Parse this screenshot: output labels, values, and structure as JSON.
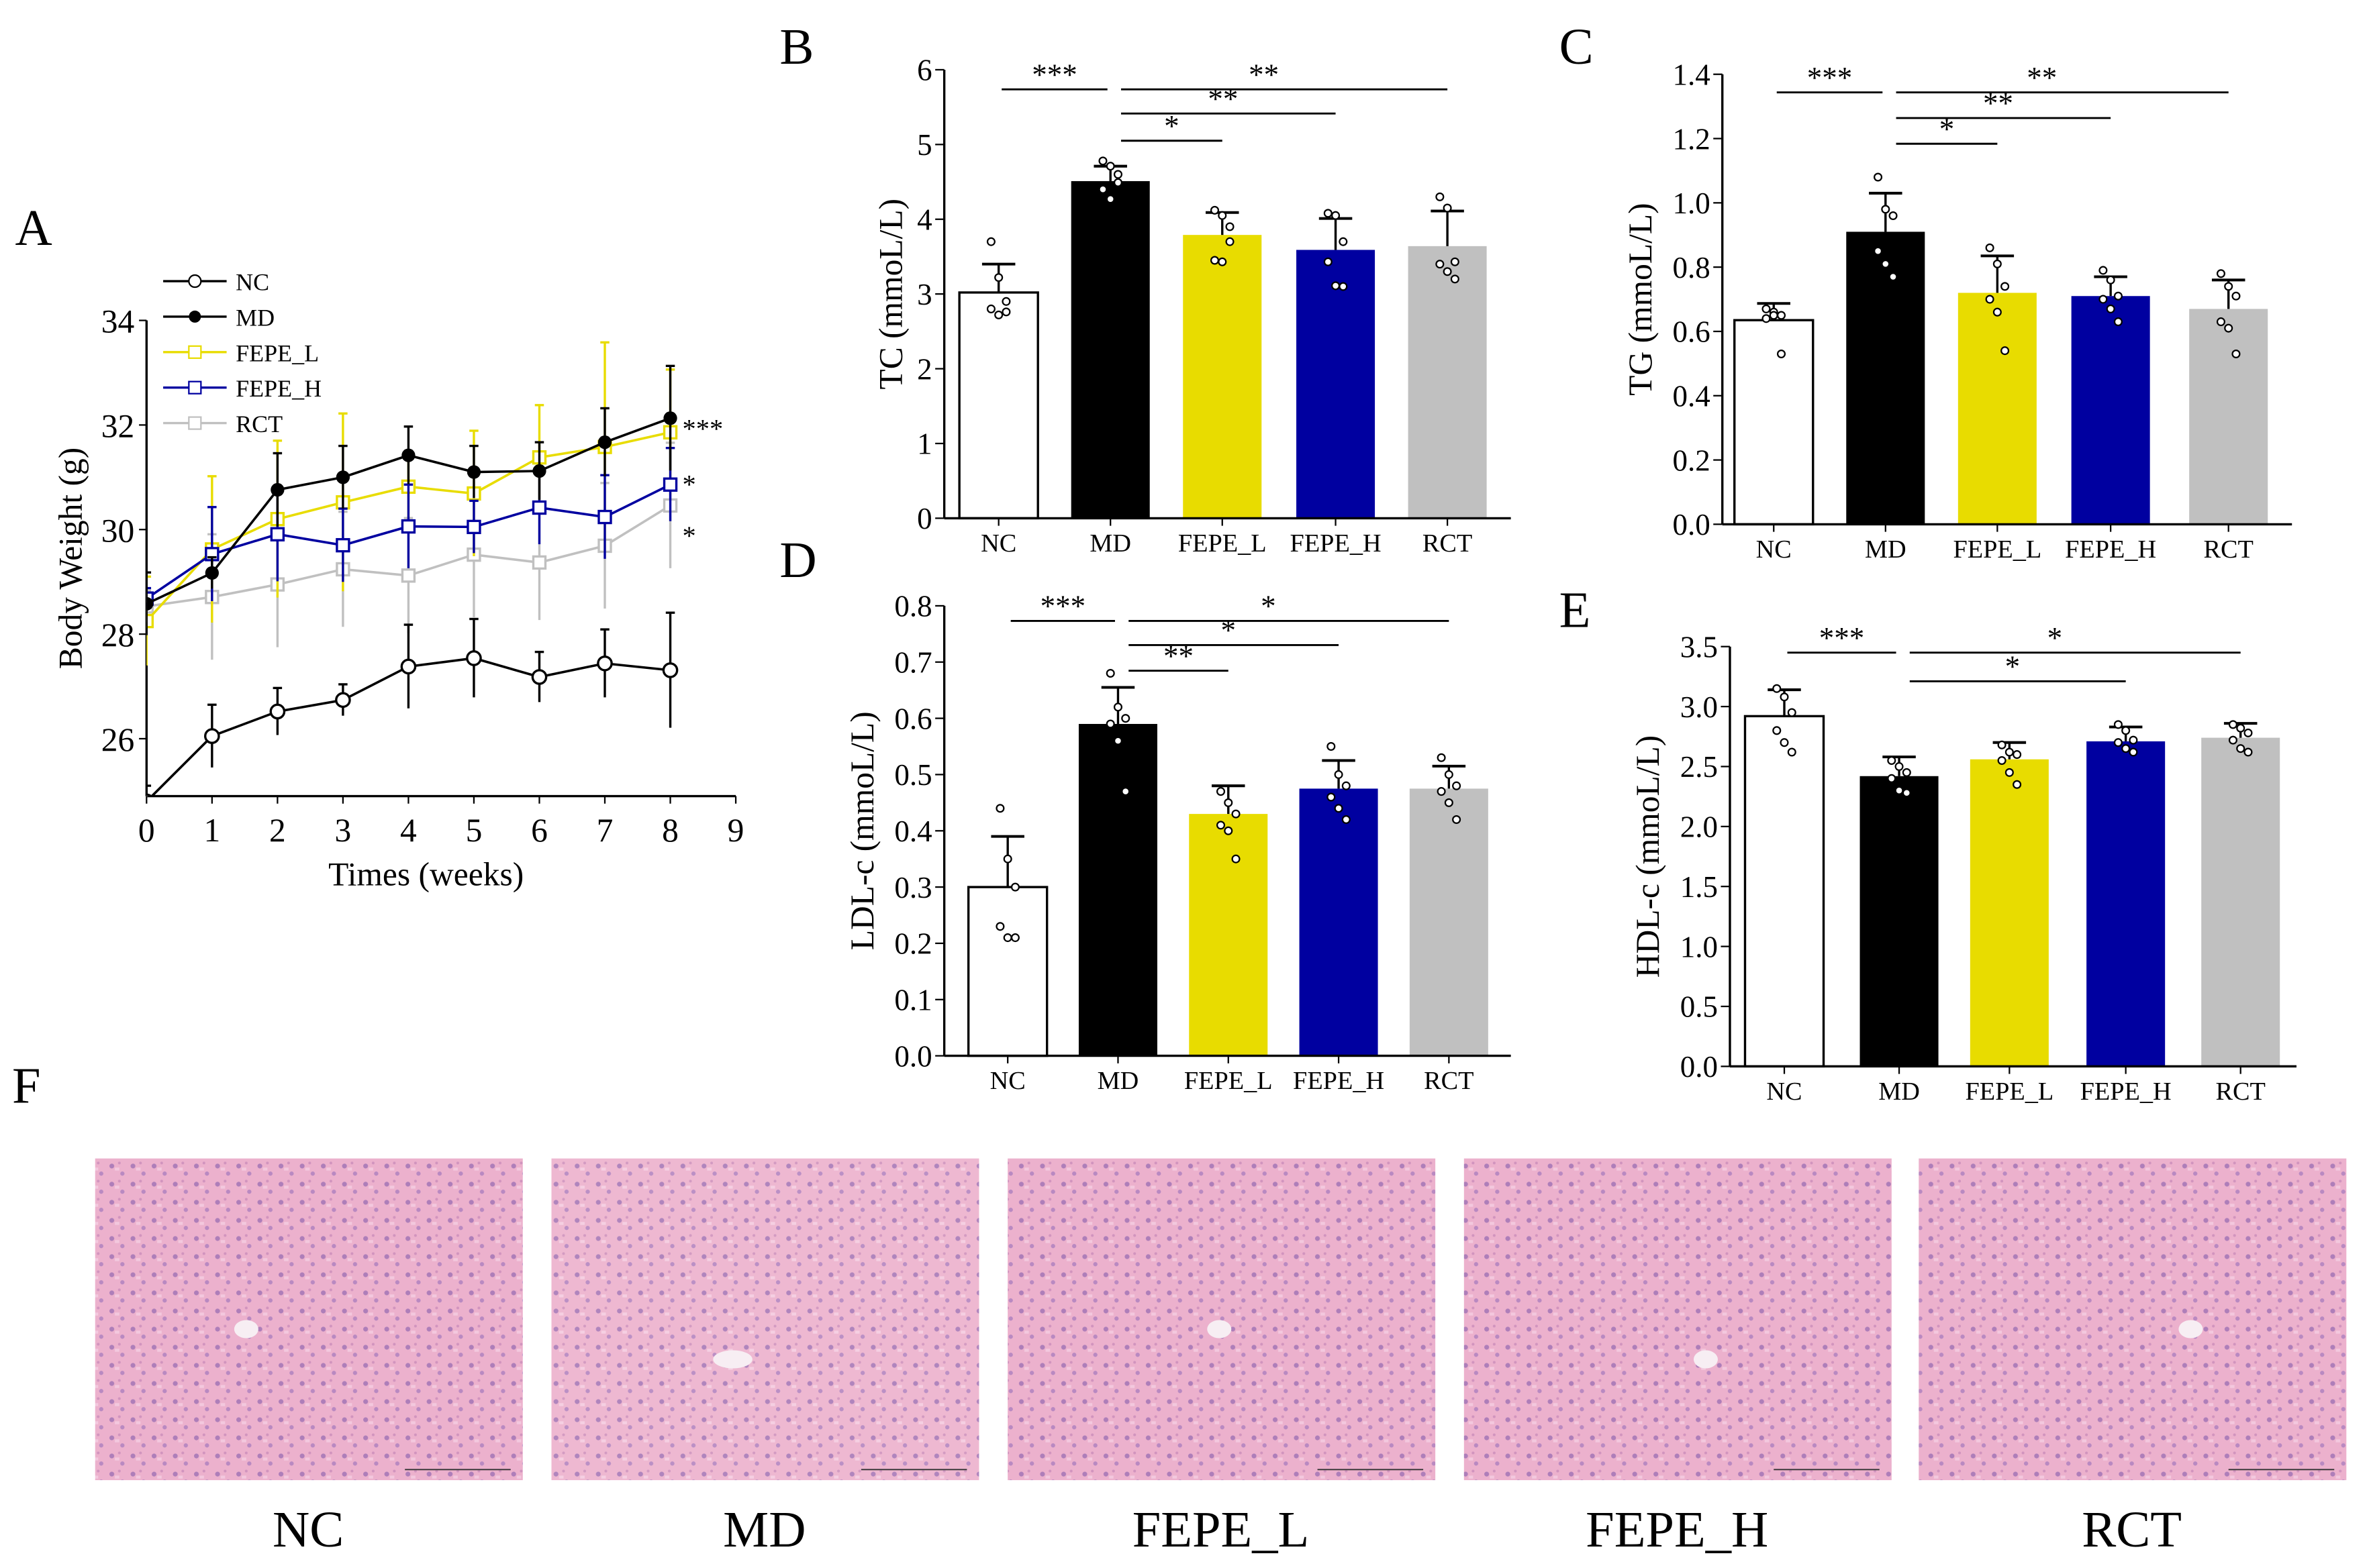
{
  "panel_letters": [
    "A",
    "B",
    "C",
    "D",
    "E",
    "F"
  ],
  "colors": {
    "NC": "#ffffff",
    "MD": "#000000",
    "FEPE_L": "#e8dc00",
    "FEPE_H": "#0000a0",
    "RCT": "#c0c0c0",
    "tissue": "#e7a2c4",
    "nuclei": "#8a5aa8"
  },
  "chart_data": [
    {
      "panel": "A",
      "type": "line",
      "xlabel": "Times (weeks)",
      "ylabel": "Body Weight (g)",
      "xlim": [
        0,
        9
      ],
      "ylim": [
        25,
        34
      ],
      "xticks": [
        "0",
        "1",
        "2",
        "3",
        "4",
        "5",
        "6",
        "7",
        "8",
        "9"
      ],
      "yticks": [
        "26",
        "28",
        "30",
        "32",
        "34"
      ],
      "x": [
        0,
        1,
        2,
        3,
        4,
        5,
        6,
        7,
        8
      ],
      "legend_position": "top-left",
      "series": [
        {
          "name": "NC",
          "marker": "open-circle",
          "values": [
            24.8,
            26.05,
            26.52,
            26.74,
            27.38,
            27.54,
            27.18,
            27.44,
            27.31
          ],
          "errors": [
            0.3,
            0.6,
            0.45,
            0.3,
            0.8,
            0.75,
            0.48,
            0.65,
            1.1
          ]
        },
        {
          "name": "MD",
          "marker": "filled-circle",
          "values": [
            28.58,
            29.17,
            30.76,
            31.0,
            31.42,
            31.1,
            31.12,
            31.67,
            32.13
          ],
          "errors": [
            0.6,
            0.3,
            0.7,
            0.6,
            0.55,
            0.5,
            0.55,
            0.65,
            1.0
          ]
        },
        {
          "name": "FEPE_L",
          "marker": "open-square",
          "values": [
            28.25,
            29.62,
            30.2,
            30.52,
            30.82,
            30.69,
            31.38,
            31.58,
            31.86
          ],
          "errors": [
            0.85,
            1.4,
            1.5,
            1.7,
            0.6,
            1.2,
            1.0,
            2.0,
            1.2
          ]
        },
        {
          "name": "FEPE_H",
          "marker": "open-square",
          "values": [
            28.68,
            29.53,
            29.91,
            29.7,
            30.06,
            30.05,
            30.42,
            30.24,
            30.86
          ],
          "errors": [
            0.2,
            0.9,
            0.9,
            0.7,
            0.8,
            0.5,
            0.7,
            0.8,
            0.7
          ]
        },
        {
          "name": "RCT",
          "marker": "open-square",
          "values": [
            28.53,
            28.71,
            28.95,
            29.24,
            29.12,
            29.52,
            29.37,
            29.69,
            30.46
          ],
          "errors": [
            0.3,
            1.2,
            1.2,
            1.1,
            1.1,
            1.2,
            1.1,
            1.2,
            1.2
          ]
        }
      ],
      "annotations": [
        {
          "series": "MD",
          "text": "***"
        },
        {
          "series": "FEPE_H",
          "text": "*"
        },
        {
          "series": "RCT",
          "text": "*"
        }
      ]
    },
    {
      "panel": "B",
      "type": "bar",
      "ylabel": "TC (mmoL/L)",
      "ylim": [
        0,
        6
      ],
      "yticks": [
        "0",
        "1",
        "2",
        "3",
        "4",
        "5",
        "6"
      ],
      "categories": [
        "NC",
        "MD",
        "FEPE_L",
        "FEPE_H",
        "RCT"
      ],
      "values": [
        3.02,
        4.51,
        3.79,
        3.59,
        3.64
      ],
      "errors": [
        0.38,
        0.2,
        0.3,
        0.42,
        0.47
      ],
      "points": [
        [
          3.7,
          3.22,
          2.9,
          2.8,
          2.72,
          2.76
        ],
        [
          4.78,
          4.71,
          4.49,
          4.4,
          4.27,
          4.6
        ],
        [
          4.12,
          4.05,
          3.7,
          3.45,
          3.43,
          3.9
        ],
        [
          4.08,
          4.05,
          3.7,
          3.43,
          3.11,
          3.1
        ],
        [
          4.3,
          4.15,
          3.43,
          3.4,
          3.3,
          3.2
        ]
      ],
      "significance": [
        {
          "from": "NC",
          "to": "MD",
          "text": "***"
        },
        {
          "from": "MD",
          "to": "RCT",
          "text": "**"
        },
        {
          "from": "MD",
          "to": "FEPE_H",
          "text": "**"
        },
        {
          "from": "MD",
          "to": "FEPE_L",
          "text": "*"
        }
      ]
    },
    {
      "panel": "C",
      "type": "bar",
      "ylabel": "TG (mmoL/L)",
      "ylim": [
        0,
        1.4
      ],
      "yticks": [
        "0.0",
        "0.2",
        "0.4",
        "0.6",
        "0.8",
        "1.0",
        "1.2",
        "1.4"
      ],
      "categories": [
        "NC",
        "MD",
        "FEPE_L",
        "FEPE_H",
        "RCT"
      ],
      "values": [
        0.635,
        0.91,
        0.72,
        0.71,
        0.67
      ],
      "errors": [
        0.052,
        0.12,
        0.115,
        0.06,
        0.09
      ],
      "points": [
        [
          0.67,
          0.66,
          0.65,
          0.64,
          0.65,
          0.53
        ],
        [
          1.08,
          0.98,
          0.96,
          0.85,
          0.81,
          0.77
        ],
        [
          0.86,
          0.81,
          0.74,
          0.7,
          0.66,
          0.54
        ],
        [
          0.79,
          0.76,
          0.71,
          0.7,
          0.67,
          0.63
        ],
        [
          0.78,
          0.74,
          0.71,
          0.63,
          0.61,
          0.53
        ]
      ],
      "significance": [
        {
          "from": "NC",
          "to": "MD",
          "text": "***"
        },
        {
          "from": "MD",
          "to": "RCT",
          "text": "**"
        },
        {
          "from": "MD",
          "to": "FEPE_H",
          "text": "**"
        },
        {
          "from": "MD",
          "to": "FEPE_L",
          "text": "*"
        }
      ]
    },
    {
      "panel": "D",
      "type": "bar",
      "ylabel": "LDL-c (mmoL/L)",
      "ylim": [
        0,
        0.8
      ],
      "yticks": [
        "0.0",
        "0.1",
        "0.2",
        "0.3",
        "0.4",
        "0.5",
        "0.6",
        "0.7",
        "0.8"
      ],
      "categories": [
        "NC",
        "MD",
        "FEPE_L",
        "FEPE_H",
        "RCT"
      ],
      "values": [
        0.3,
        0.59,
        0.43,
        0.475,
        0.475
      ],
      "errors": [
        0.09,
        0.065,
        0.05,
        0.05,
        0.04
      ],
      "points": [
        [
          0.44,
          0.35,
          0.3,
          0.23,
          0.21,
          0.21
        ],
        [
          0.68,
          0.62,
          0.6,
          0.59,
          0.56,
          0.47
        ],
        [
          0.47,
          0.45,
          0.43,
          0.41,
          0.4,
          0.35
        ],
        [
          0.55,
          0.5,
          0.48,
          0.46,
          0.44,
          0.42
        ],
        [
          0.53,
          0.5,
          0.48,
          0.47,
          0.45,
          0.42
        ]
      ],
      "significance": [
        {
          "from": "NC",
          "to": "MD",
          "text": "***"
        },
        {
          "from": "MD",
          "to": "RCT",
          "text": "*"
        },
        {
          "from": "MD",
          "to": "FEPE_H",
          "text": "*"
        },
        {
          "from": "MD",
          "to": "FEPE_L",
          "text": "**"
        }
      ]
    },
    {
      "panel": "E",
      "type": "bar",
      "ylabel": "HDL-c (mmoL/L)",
      "ylim": [
        0,
        3.5
      ],
      "yticks": [
        "0.0",
        "0.5",
        "1.0",
        "1.5",
        "2.0",
        "2.5",
        "3.0",
        "3.5"
      ],
      "categories": [
        "NC",
        "MD",
        "FEPE_L",
        "FEPE_H",
        "RCT"
      ],
      "values": [
        2.92,
        2.42,
        2.56,
        2.71,
        2.74
      ],
      "errors": [
        0.22,
        0.16,
        0.14,
        0.12,
        0.12
      ],
      "points": [
        [
          3.15,
          3.08,
          2.95,
          2.8,
          2.7,
          2.62
        ],
        [
          2.55,
          2.5,
          2.45,
          2.4,
          2.3,
          2.28
        ],
        [
          2.68,
          2.62,
          2.6,
          2.55,
          2.45,
          2.35
        ],
        [
          2.85,
          2.8,
          2.72,
          2.7,
          2.65,
          2.62
        ],
        [
          2.85,
          2.82,
          2.78,
          2.72,
          2.65,
          2.62
        ]
      ],
      "significance": [
        {
          "from": "NC",
          "to": "MD",
          "text": "***"
        },
        {
          "from": "MD",
          "to": "RCT",
          "text": "*"
        },
        {
          "from": "MD",
          "to": "FEPE_H",
          "text": "*"
        }
      ]
    }
  ],
  "histology": {
    "panel": "F",
    "labels": [
      "NC",
      "MD",
      "FEPE_L",
      "FEPE_H",
      "RCT"
    ]
  }
}
